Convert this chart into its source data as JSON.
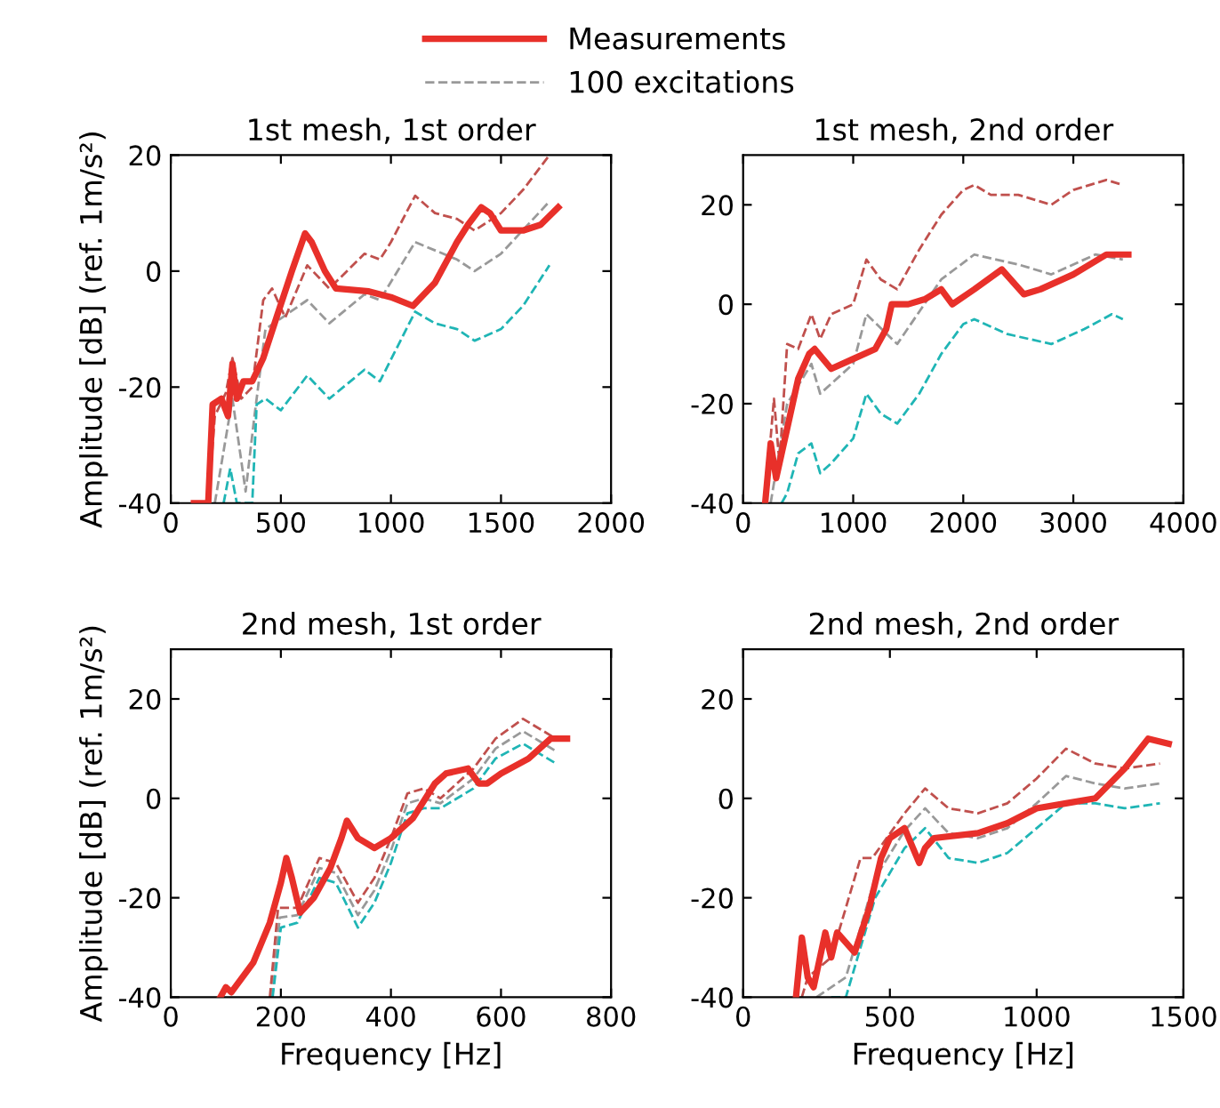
{
  "chart_data": [
    {
      "type": "line",
      "title": "1st mesh, 1st order",
      "ylabel": "Amplitude [dB] (ref. 1m/s²)",
      "xlim": [
        0,
        2000
      ],
      "xticks": [
        0,
        500,
        1000,
        1500,
        2000
      ],
      "ylim": [
        -40,
        20
      ],
      "yticks": [
        -40,
        -20,
        0,
        20
      ],
      "legend": "top",
      "series": [
        {
          "name": "Measurements",
          "color": "#e8302a",
          "line_style": "solid",
          "x": [
            105,
            170,
            190,
            230,
            260,
            280,
            300,
            330,
            370,
            420,
            480,
            550,
            610,
            640,
            700,
            750,
            900,
            1000,
            1100,
            1200,
            1300,
            1350,
            1410,
            1450,
            1500,
            1600,
            1680,
            1760
          ],
          "values": [
            -40,
            -40,
            -23,
            -22,
            -25,
            -16,
            -22,
            -19,
            -19,
            -15,
            -8,
            0,
            6.5,
            5,
            0,
            -3,
            -3.5,
            -4.5,
            -6,
            -2,
            5,
            8,
            11,
            10,
            7,
            7,
            8,
            11
          ]
        },
        {
          "name": "100 excitations",
          "color": "#999999",
          "line_style": "dashed",
          "x": [
            200,
            280,
            340,
            380,
            430,
            620,
            720,
            880,
            950,
            1110,
            1300,
            1380,
            1500,
            1720
          ],
          "values": [
            -40,
            -22,
            -38,
            -25,
            -10,
            -5,
            -9,
            -4,
            -5,
            5,
            2,
            0,
            3,
            12
          ]
        },
        {
          "color": "#c0504d",
          "line_style": "dashed",
          "x": [
            170,
            200,
            250,
            280,
            320,
            370,
            420,
            460,
            520,
            620,
            720,
            880,
            950,
            1000,
            1110,
            1200,
            1300,
            1380,
            1500,
            1600,
            1720
          ],
          "values": [
            -40,
            -25,
            -21,
            -15,
            -22,
            -20,
            -5,
            -3,
            -8,
            1,
            -3,
            3,
            2,
            5,
            13,
            10,
            9,
            7,
            10,
            14,
            20
          ]
        },
        {
          "color": "#1fb5b5",
          "line_style": "dashed",
          "x": [
            240,
            270,
            300,
            370,
            390,
            430,
            500,
            620,
            720,
            880,
            950,
            1110,
            1200,
            1300,
            1380,
            1500,
            1600,
            1720
          ],
          "values": [
            -40,
            -34,
            -40,
            -40,
            -23,
            -22,
            -24,
            -18,
            -22,
            -17,
            -19,
            -7,
            -9,
            -10,
            -12,
            -10,
            -6,
            1
          ]
        }
      ]
    },
    {
      "type": "line",
      "title": "1st mesh, 2nd order",
      "xlim": [
        0,
        4000
      ],
      "xticks": [
        0,
        1000,
        2000,
        3000,
        4000
      ],
      "ylim": [
        -40,
        30
      ],
      "yticks": [
        -40,
        -20,
        0,
        20
      ],
      "series": [
        {
          "color": "#e8302a",
          "line_style": "solid",
          "x": [
            200,
            250,
            300,
            400,
            500,
            600,
            650,
            800,
            1000,
            1200,
            1300,
            1350,
            1500,
            1650,
            1800,
            1900,
            2100,
            2350,
            2550,
            2700,
            3000,
            3300,
            3500
          ],
          "values": [
            -40,
            -28,
            -35,
            -25,
            -15,
            -10,
            -9,
            -13,
            -11,
            -9,
            -5,
            0,
            0,
            1,
            3,
            0,
            3,
            7,
            2,
            3,
            6,
            10,
            10
          ]
        },
        {
          "color": "#999999",
          "line_style": "dashed",
          "x": [
            250,
            400,
            620,
            700,
            1000,
            1120,
            1400,
            1800,
            2100,
            2500,
            2800,
            3200,
            3450
          ],
          "values": [
            -40,
            -20,
            -12,
            -18,
            -12,
            -2,
            -8,
            5,
            10,
            8,
            6,
            10,
            9
          ]
        },
        {
          "color": "#c0504d",
          "line_style": "dashed",
          "x": [
            200,
            280,
            330,
            400,
            500,
            620,
            700,
            800,
            1000,
            1120,
            1250,
            1400,
            1600,
            1800,
            2000,
            2100,
            2250,
            2500,
            2800,
            3000,
            3300,
            3450
          ],
          "values": [
            -40,
            -19,
            -32,
            -8,
            -9,
            -2,
            -7,
            -2,
            0,
            9,
            5,
            3,
            11,
            18,
            23,
            24,
            22,
            22,
            20,
            23,
            25,
            24
          ]
        },
        {
          "color": "#1fb5b5",
          "line_style": "dashed",
          "x": [
            350,
            400,
            500,
            620,
            700,
            800,
            1000,
            1120,
            1250,
            1400,
            1600,
            1800,
            2000,
            2100,
            2400,
            2800,
            3100,
            3350,
            3450
          ],
          "values": [
            -40,
            -38,
            -30,
            -28,
            -34,
            -32,
            -27,
            -18,
            -22,
            -24,
            -18,
            -10,
            -4,
            -3,
            -6,
            -8,
            -5,
            -2,
            -3
          ]
        }
      ]
    },
    {
      "type": "line",
      "title": "2nd mesh, 1st order",
      "ylabel": "Amplitude [dB] (ref. 1m/s²)",
      "xlabel": "Frequency [Hz]",
      "xlim": [
        0,
        800
      ],
      "xticks": [
        0,
        200,
        400,
        600,
        800
      ],
      "ylim": [
        -40,
        30
      ],
      "yticks": [
        -40,
        -20,
        0,
        20
      ],
      "series": [
        {
          "color": "#e8302a",
          "line_style": "solid",
          "x": [
            90,
            100,
            110,
            150,
            180,
            200,
            210,
            220,
            235,
            260,
            290,
            310,
            320,
            340,
            370,
            400,
            440,
            480,
            500,
            540,
            560,
            575,
            600,
            650,
            690,
            720
          ],
          "values": [
            -40,
            -38,
            -39,
            -33,
            -25,
            -17,
            -12,
            -16,
            -23,
            -20,
            -14,
            -8,
            -4.5,
            -8,
            -10,
            -8,
            -4,
            3,
            5,
            6,
            3,
            3,
            5,
            8,
            12,
            12
          ]
        },
        {
          "color": "#999999",
          "line_style": "dashed",
          "x": [
            183,
            198,
            230,
            270,
            300,
            340,
            370,
            400,
            430,
            460,
            490,
            550,
            590,
            640,
            700
          ],
          "values": [
            -40,
            -24,
            -23.5,
            -14,
            -15,
            -23.5,
            -18.5,
            -10.5,
            -1,
            0,
            -1,
            4,
            10,
            13.5,
            9.5
          ]
        },
        {
          "color": "#c0504d",
          "line_style": "dashed",
          "x": [
            180,
            195,
            230,
            270,
            300,
            340,
            370,
            400,
            430,
            460,
            490,
            550,
            590,
            640,
            700
          ],
          "values": [
            -40,
            -22,
            -22,
            -12,
            -13,
            -21,
            -16,
            -8,
            1,
            2,
            0,
            6,
            12,
            16,
            12
          ]
        },
        {
          "color": "#1fb5b5",
          "line_style": "dashed",
          "x": [
            185,
            200,
            230,
            270,
            300,
            340,
            370,
            400,
            430,
            460,
            490,
            550,
            590,
            640,
            700
          ],
          "values": [
            -40,
            -26,
            -25,
            -16,
            -17,
            -26,
            -21,
            -13,
            -3,
            -2,
            -2,
            2,
            8,
            11,
            7
          ]
        }
      ]
    },
    {
      "type": "line",
      "title": "2nd mesh, 2nd order",
      "xlabel": "Frequency [Hz]",
      "xlim": [
        0,
        1500
      ],
      "xticks": [
        0,
        500,
        1000,
        1500
      ],
      "ylim": [
        -40,
        30
      ],
      "yticks": [
        -40,
        -20,
        0,
        20
      ],
      "series": [
        {
          "color": "#e8302a",
          "line_style": "solid",
          "x": [
            180,
            200,
            220,
            240,
            280,
            300,
            320,
            350,
            380,
            430,
            470,
            500,
            550,
            600,
            620,
            650,
            800,
            900,
            1000,
            1100,
            1200,
            1300,
            1380,
            1450
          ],
          "values": [
            -40,
            -28,
            -36,
            -38,
            -27,
            -32,
            -27,
            -29,
            -31,
            -22,
            -12,
            -8,
            -6,
            -13,
            -10,
            -8,
            -7,
            -5,
            -2,
            -1,
            0,
            6,
            12,
            11
          ]
        },
        {
          "color": "#999999",
          "line_style": "dashed",
          "x": [
            250,
            350,
            450,
            550,
            620,
            700,
            800,
            900,
            1000,
            1100,
            1200,
            1300,
            1420
          ],
          "values": [
            -40,
            -36,
            -16,
            -6.5,
            -2,
            -7,
            -8,
            -6,
            -1,
            4.5,
            3,
            2,
            3
          ]
        },
        {
          "color": "#c0504d",
          "line_style": "dashed",
          "x": [
            200,
            220,
            300,
            400,
            440,
            550,
            620,
            700,
            800,
            900,
            1000,
            1100,
            1200,
            1300,
            1420
          ],
          "values": [
            -40,
            -36,
            -32,
            -12,
            -12,
            -3,
            2,
            -2,
            -3,
            -1,
            4,
            10,
            7,
            6,
            7
          ]
        },
        {
          "color": "#1fb5b5",
          "line_style": "dashed",
          "x": [
            300,
            350,
            450,
            550,
            620,
            700,
            800,
            900,
            1000,
            1100,
            1200,
            1300,
            1420
          ],
          "values": [
            -40,
            -40,
            -20,
            -10,
            -6,
            -12,
            -13,
            -11,
            -6,
            -1,
            -1,
            -2,
            -1
          ]
        }
      ]
    }
  ]
}
